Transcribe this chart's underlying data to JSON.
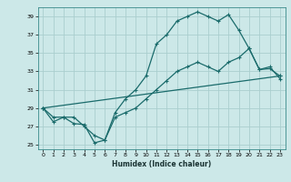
{
  "xlabel": "Humidex (Indice chaleur)",
  "bg_color": "#cce8e8",
  "grid_color": "#aacece",
  "line_color": "#1a6b6b",
  "xlim": [
    -0.5,
    23.5
  ],
  "ylim": [
    24.5,
    40.0
  ],
  "xticks": [
    0,
    1,
    2,
    3,
    4,
    5,
    6,
    7,
    8,
    9,
    10,
    11,
    12,
    13,
    14,
    15,
    16,
    17,
    18,
    19,
    20,
    21,
    22,
    23
  ],
  "yticks": [
    25,
    27,
    29,
    31,
    33,
    35,
    37,
    39
  ],
  "line1_x": [
    0,
    1,
    2,
    3,
    4,
    5,
    6,
    7,
    8,
    9,
    10,
    11,
    12,
    13,
    14,
    15,
    16,
    17,
    18,
    19,
    20,
    21,
    22,
    23
  ],
  "line1_y": [
    29,
    28,
    28,
    28,
    27,
    26,
    25.5,
    28.5,
    30,
    31,
    32.5,
    36,
    37,
    38.5,
    39,
    39.5,
    39,
    38.5,
    39.2,
    37.5,
    35.5,
    33.2,
    33.3,
    32.5
  ],
  "line2_x": [
    0,
    1,
    2,
    3,
    4,
    5,
    6,
    7,
    8,
    9,
    10,
    11,
    12,
    13,
    14,
    15,
    16,
    17,
    18,
    19,
    20,
    21,
    22,
    23
  ],
  "line2_y": [
    29,
    27.5,
    28,
    27.3,
    27.2,
    25.2,
    25.5,
    28,
    28.5,
    29,
    30,
    31,
    32,
    33,
    33.5,
    34,
    33.5,
    33,
    34,
    34.5,
    35.5,
    33.2,
    33.5,
    32.2
  ],
  "line3_x": [
    0,
    23
  ],
  "line3_y": [
    29,
    32.5
  ]
}
